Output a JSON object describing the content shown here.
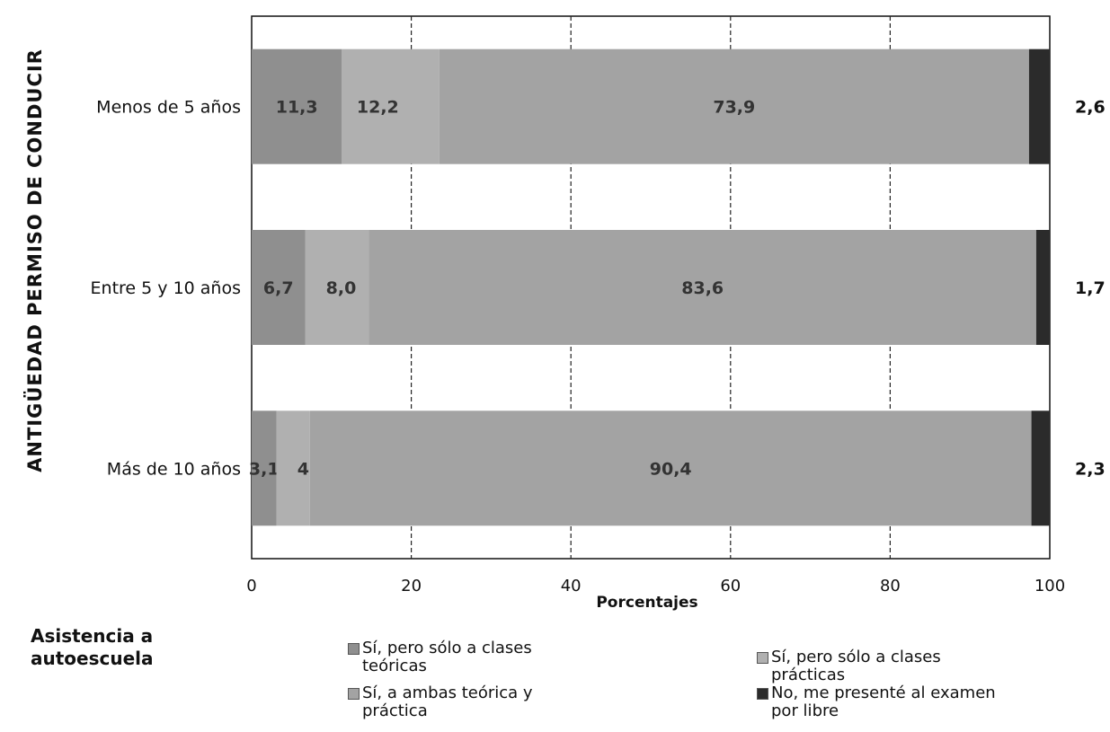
{
  "chart_data": {
    "type": "bar",
    "orientation": "horizontal",
    "stacked": true,
    "categories": [
      "Menos de 5 años",
      "Entre 5 y 10 años",
      "Más de 10 años"
    ],
    "series": [
      {
        "name": "Sí, pero sólo a clases teóricas",
        "values": [
          11.3,
          6.7,
          3.1
        ],
        "labels": [
          "11,3",
          "6,7",
          "3,1"
        ],
        "color": "#8f8f8f"
      },
      {
        "name": "Sí, pero sólo a clases prácticas",
        "values": [
          12.2,
          8.0,
          4.2
        ],
        "labels": [
          "12,2",
          "8,0",
          "4,2"
        ],
        "color": "#b0b0b0"
      },
      {
        "name": "Sí, a ambas teórica y práctica",
        "values": [
          73.9,
          83.6,
          90.4
        ],
        "labels": [
          "73,9",
          "83,6",
          "90,4"
        ],
        "color": "#a3a3a3"
      },
      {
        "name": "No, me presenté al examen por libre",
        "values": [
          2.6,
          1.7,
          2.3
        ],
        "labels": [
          "2,6",
          "1,7",
          "2,3"
        ],
        "color": "#2b2b2b"
      }
    ],
    "xlabel": "Porcentajes",
    "ylabel": "ANTIGÜEDAD PERMISO DE CONDUCIR",
    "xlim": [
      0,
      100
    ],
    "xticks": [
      "0",
      "20",
      "40",
      "60",
      "80",
      "100"
    ],
    "grid": "vertical-dashed",
    "legend_position": "bottom"
  },
  "legend": {
    "title": "Asistencia a autoescuela"
  }
}
